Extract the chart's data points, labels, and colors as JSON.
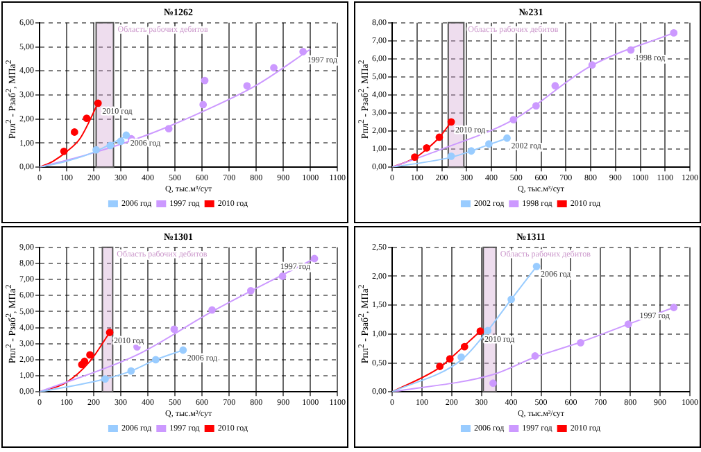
{
  "chart_data": [
    {
      "type": "scatter",
      "title": "№1262",
      "xlabel": "Q, тыс.м³/сут",
      "ylabel": "Pпл$^{2}$ - Pзаб$^{2}$, МПа$^{2}$",
      "xlim": [
        0,
        1100
      ],
      "xticks": [
        0,
        100,
        200,
        300,
        400,
        500,
        600,
        700,
        800,
        900,
        1000,
        1100
      ],
      "ylim": [
        0,
        6
      ],
      "yticks": [
        {
          "value": 0,
          "label": "0,00"
        },
        {
          "value": 1,
          "label": "1,00"
        },
        {
          "value": 2,
          "label": "2,00"
        },
        {
          "value": 3,
          "label": "3,00"
        },
        {
          "value": 4,
          "label": "4,00"
        },
        {
          "value": 5,
          "label": "5,00"
        },
        {
          "value": 6,
          "label": "6,00"
        }
      ],
      "grid": true,
      "legend": "bottom",
      "marker": "circle",
      "series": [
        {
          "name": "2006 год",
          "color": "#99ccff",
          "x": [
            209,
            261,
            300,
            320
          ],
          "values": [
            0.72,
            0.9,
            1.08,
            1.33
          ]
        },
        {
          "name": "1997 год",
          "color": "#cc99ff",
          "x": [
            339,
            477,
            604,
            610,
            766,
            865,
            973
          ],
          "values": [
            1.18,
            1.6,
            2.6,
            3.6,
            3.38,
            4.13,
            4.8
          ]
        },
        {
          "name": "2010 год",
          "color": "#ff0000",
          "x": [
            90,
            129,
            174,
            216
          ],
          "values": [
            0.66,
            1.46,
            2.03,
            2.66
          ]
        },
        {
          "type": "line",
          "marker": "none",
          "color": "#99ccff",
          "x": [
            0,
            100,
            200,
            320
          ],
          "values": [
            0,
            0.25,
            0.62,
            1.3
          ]
        },
        {
          "type": "line",
          "marker": "none",
          "color": "#cc99ff",
          "x": [
            0,
            200,
            400,
            600,
            800,
            1000
          ],
          "values": [
            0,
            0.6,
            1.35,
            2.3,
            3.4,
            4.9
          ]
        },
        {
          "type": "line",
          "marker": "none",
          "color": "#ff0000",
          "x": [
            0,
            50,
            100,
            150,
            216
          ],
          "values": [
            0,
            0.25,
            0.65,
            1.2,
            2.66
          ]
        }
      ],
      "bands": [
        {
          "axis": "x",
          "from": 209,
          "to": 273,
          "label": "Область рабочих дебитов",
          "color": "#cc99cc"
        }
      ],
      "annotations": [
        {
          "text": "2010 год",
          "x": 216,
          "y": 2.66
        },
        {
          "text": "2006 год",
          "x": 320,
          "y": 1.33
        },
        {
          "text": "1997 год",
          "x": 973,
          "y": 4.8
        }
      ]
    },
    {
      "type": "scatter",
      "title": "№231",
      "xlabel": "Q, тыс.м³/сут",
      "ylabel": "Pпл$^{2}$ - Pзаб$^{2}$, МПа$^{2}$",
      "xlim": [
        0,
        1200
      ],
      "xticks": [
        0,
        100,
        200,
        300,
        400,
        500,
        600,
        700,
        800,
        900,
        1000,
        1100,
        1200
      ],
      "ylim": [
        0,
        8
      ],
      "yticks": [
        {
          "value": 0,
          "label": "0,00"
        },
        {
          "value": 1,
          "label": "1,00"
        },
        {
          "value": 2,
          "label": "2,00"
        },
        {
          "value": 3,
          "label": "3,00"
        },
        {
          "value": 4,
          "label": "4,00"
        },
        {
          "value": 5,
          "label": "5,00"
        },
        {
          "value": 6,
          "label": "6,00"
        },
        {
          "value": 7,
          "label": "7,00"
        },
        {
          "value": 8,
          "label": "8,00"
        }
      ],
      "grid": true,
      "legend": "bottom",
      "marker": "circle",
      "series": [
        {
          "name": "2002 год",
          "color": "#99ccff",
          "x": [
            238,
            319,
            390,
            463
          ],
          "values": [
            0.61,
            0.9,
            1.29,
            1.61
          ]
        },
        {
          "name": "1998 год",
          "color": "#cc99ff",
          "x": [
            489,
            580,
            657,
            806,
            962,
            1135
          ],
          "values": [
            2.63,
            3.4,
            4.51,
            5.66,
            6.49,
            7.44
          ]
        },
        {
          "name": "2010 год",
          "color": "#ff0000",
          "x": [
            91,
            139,
            190,
            238
          ],
          "values": [
            0.56,
            1.07,
            1.66,
            2.51
          ]
        },
        {
          "type": "line",
          "marker": "none",
          "color": "#99ccff",
          "x": [
            0,
            238,
            319,
            390,
            463
          ],
          "values": [
            0,
            0.55,
            0.9,
            1.25,
            1.6
          ]
        },
        {
          "type": "line",
          "marker": "none",
          "color": "#cc99ff",
          "x": [
            0,
            200,
            489,
            800,
            1135
          ],
          "values": [
            0,
            1,
            2.63,
            5.6,
            7.44
          ]
        },
        {
          "type": "line",
          "marker": "none",
          "color": "#ff0000",
          "x": [
            0,
            90,
            139,
            190,
            238
          ],
          "values": [
            0,
            0.5,
            1,
            1.65,
            2.51
          ]
        }
      ],
      "bands": [
        {
          "axis": "x",
          "from": 226,
          "to": 289,
          "label": "Область рабочих дебитов",
          "color": "#cc99cc"
        }
      ],
      "annotations": [
        {
          "text": "2010 год",
          "x": 238,
          "y": 2.51
        },
        {
          "text": "2002 год",
          "x": 463,
          "y": 1.61
        },
        {
          "text": "1998 год",
          "x": 962,
          "y": 6.49
        }
      ]
    },
    {
      "type": "scatter",
      "title": "№1301",
      "xlabel": "Q, тыс.м³/сут",
      "ylabel": "Pпл$^{2}$ - Pзаб$^{2}$, МПа$^{2}$",
      "xlim": [
        0,
        1100
      ],
      "xticks": [
        0,
        100,
        200,
        300,
        400,
        500,
        600,
        700,
        800,
        900,
        1000,
        1100
      ],
      "ylim": [
        0,
        9
      ],
      "yticks": [
        {
          "value": 0,
          "label": "0,00"
        },
        {
          "value": 1,
          "label": "1,00"
        },
        {
          "value": 2,
          "label": "2,00"
        },
        {
          "value": 3,
          "label": "3,00"
        },
        {
          "value": 4,
          "label": "4,00"
        },
        {
          "value": 5,
          "label": "5,00"
        },
        {
          "value": 6,
          "label": "6,00"
        },
        {
          "value": 7,
          "label": "7,00"
        },
        {
          "value": 8,
          "label": "8,00"
        },
        {
          "value": 9,
          "label": "9,00"
        }
      ],
      "grid": true,
      "legend": "bottom",
      "marker": "circle",
      "series": [
        {
          "name": "2006 год",
          "color": "#99ccff",
          "x": [
            242,
            338,
            429,
            530
          ],
          "values": [
            0.8,
            1.3,
            2.0,
            2.6
          ]
        },
        {
          "name": "1997 год",
          "color": "#cc99ff",
          "x": [
            360,
            497,
            637,
            780,
            897,
            1015
          ],
          "values": [
            2.8,
            3.9,
            5.1,
            6.3,
            7.2,
            8.3
          ]
        },
        {
          "name": "2010 год",
          "color": "#ff0000",
          "x": [
            156,
            166,
            186,
            259
          ],
          "values": [
            1.7,
            1.9,
            2.3,
            3.7
          ]
        },
        {
          "type": "line",
          "marker": "none",
          "color": "#99ccff",
          "x": [
            0,
            242,
            338,
            429,
            530
          ],
          "values": [
            0,
            0.8,
            1.3,
            2.0,
            2.6
          ]
        },
        {
          "type": "line",
          "marker": "none",
          "color": "#cc99ff",
          "x": [
            0,
            360,
            637,
            1015
          ],
          "values": [
            0,
            2.3,
            5,
            8.3
          ]
        },
        {
          "type": "line",
          "marker": "none",
          "color": "#ff0000",
          "x": [
            0,
            100,
            186,
            259
          ],
          "values": [
            0,
            0.6,
            1.9,
            3.7
          ]
        }
      ],
      "bands": [
        {
          "axis": "x",
          "from": 232,
          "to": 270,
          "label": "Область рабочих дебитов",
          "color": "#cc99cc"
        }
      ],
      "annotations": [
        {
          "text": "2010 год",
          "x": 259,
          "y": 3.7
        },
        {
          "text": "2006 год",
          "x": 530,
          "y": 2.6
        },
        {
          "text": "1997 год",
          "x": 1015,
          "y": 8.3
        }
      ]
    },
    {
      "type": "scatter",
      "title": "№1311",
      "xlabel": "Q, тыс.м³/сут",
      "ylabel": "Pпл$^{2}$ - Pзаб$^{2}$, МПа$^{2}$",
      "xlim": [
        0,
        1000
      ],
      "xticks": [
        0,
        100,
        200,
        300,
        400,
        500,
        600,
        700,
        800,
        900,
        1000
      ],
      "ylim": [
        0,
        2.5
      ],
      "yticks": [
        {
          "value": 0,
          "label": "0,00"
        },
        {
          "value": 0.5,
          "label": "0,50"
        },
        {
          "value": 1,
          "label": "1,00"
        },
        {
          "value": 1.5,
          "label": "1,50"
        },
        {
          "value": 2,
          "label": "2,00"
        },
        {
          "value": 2.5,
          "label": "2,50"
        }
      ],
      "grid": true,
      "legend": "bottom",
      "marker": "circle",
      "series": [
        {
          "name": "2006 год",
          "color": "#99ccff",
          "x": [
            232,
            321,
            400,
            485
          ],
          "values": [
            0.6,
            1.06,
            1.6,
            2.17
          ]
        },
        {
          "name": "1997 год",
          "color": "#cc99ff",
          "x": [
            339,
            480,
            633,
            793,
            946
          ],
          "values": [
            0.15,
            0.62,
            0.85,
            1.17,
            1.46
          ]
        },
        {
          "name": "2010 год",
          "color": "#ff0000",
          "x": [
            160,
            194,
            243,
            296
          ],
          "values": [
            0.44,
            0.57,
            0.78,
            1.05
          ]
        },
        {
          "type": "line",
          "marker": "none",
          "color": "#99ccff",
          "x": [
            0,
            232,
            321,
            400,
            485
          ],
          "values": [
            0,
            0.55,
            1.06,
            1.6,
            2.17
          ]
        },
        {
          "type": "line",
          "marker": "none",
          "color": "#cc99ff",
          "x": [
            0,
            339,
            480,
            633,
            793,
            946
          ],
          "values": [
            0,
            0.3,
            0.6,
            0.86,
            1.17,
            1.46
          ]
        },
        {
          "type": "line",
          "marker": "none",
          "color": "#ff0000",
          "x": [
            0,
            160,
            194,
            243,
            296
          ],
          "values": [
            0,
            0.42,
            0.57,
            0.8,
            1.05
          ]
        }
      ],
      "bands": [
        {
          "axis": "x",
          "from": 306,
          "to": 349,
          "label": "Область рабочих дебитов",
          "color": "#cc99cc"
        }
      ],
      "annotations": [
        {
          "text": "2010 год",
          "x": 296,
          "y": 1.05
        },
        {
          "text": "2006 год",
          "x": 485,
          "y": 2.17
        },
        {
          "text": "1997 год",
          "x": 946,
          "y": 1.46
        }
      ]
    }
  ]
}
